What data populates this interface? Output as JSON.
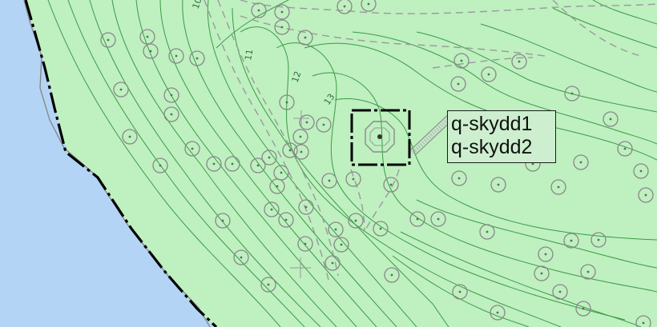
{
  "map": {
    "colors": {
      "land": "#bff0c0",
      "water": "#b3d4f5",
      "contour": "#3a9a48",
      "path": "#9a9a9a",
      "tree": "#888888",
      "boundary": "#000000",
      "label_bg": "#cdefcf"
    },
    "contour_labels": [
      "10",
      "11",
      "12",
      "13"
    ],
    "label_box": {
      "line1": "q-skydd1",
      "line2": "q-skydd2"
    },
    "feature_icons": [
      "tree-symbol-icon",
      "survey-cross-icon",
      "octagon-marker-icon",
      "center-dot-icon"
    ]
  }
}
